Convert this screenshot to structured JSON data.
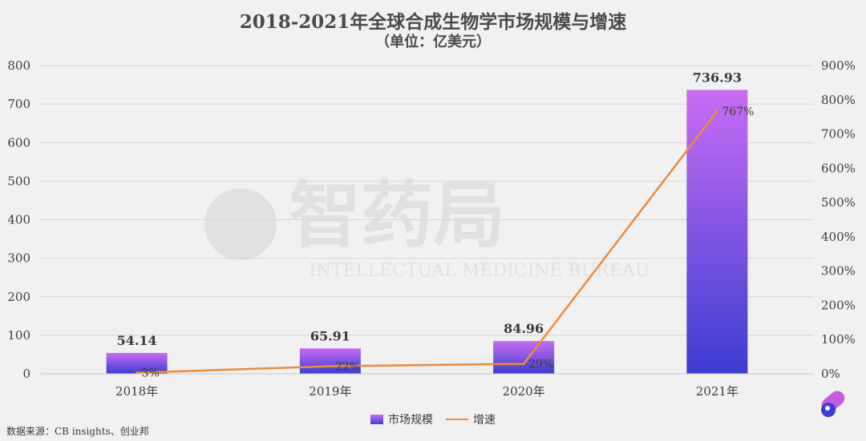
{
  "chart_data": {
    "type": "bar",
    "title": "2018-2021年全球合成生物学市场规模与增速",
    "subtitle": "（单位：亿美元）",
    "categories": [
      "2018年",
      "2019年",
      "2020年",
      "2021年"
    ],
    "series": [
      {
        "name": "市场规模",
        "type": "bar",
        "axis": "left",
        "values": [
          54.14,
          65.91,
          84.96,
          736.93
        ],
        "labels": [
          "54.14",
          "65.91",
          "84.96",
          "736.93"
        ],
        "color_top": "#c86cf3",
        "color_bottom": "#3b3dd0"
      },
      {
        "name": "增速",
        "type": "line",
        "axis": "right",
        "values": [
          3,
          22,
          29,
          767
        ],
        "labels": [
          "3%",
          "22%",
          "29%",
          "767%"
        ],
        "color": "#ed8b3f"
      }
    ],
    "y_left": {
      "range": [
        0,
        800
      ],
      "ticks": [
        "0",
        "100",
        "200",
        "300",
        "400",
        "500",
        "600",
        "700",
        "800"
      ]
    },
    "y_right": {
      "range": [
        0,
        900
      ],
      "ticks": [
        "0%",
        "100%",
        "200%",
        "300%",
        "400%",
        "500%",
        "600%",
        "700%",
        "800%",
        "900%"
      ]
    },
    "grid": true,
    "legend_position": "bottom"
  },
  "source": "数据来源：CB insights、创业邦",
  "watermark": {
    "main": "智药局",
    "sub": "INTELLECTUAL MEDICINE BUREAU"
  }
}
